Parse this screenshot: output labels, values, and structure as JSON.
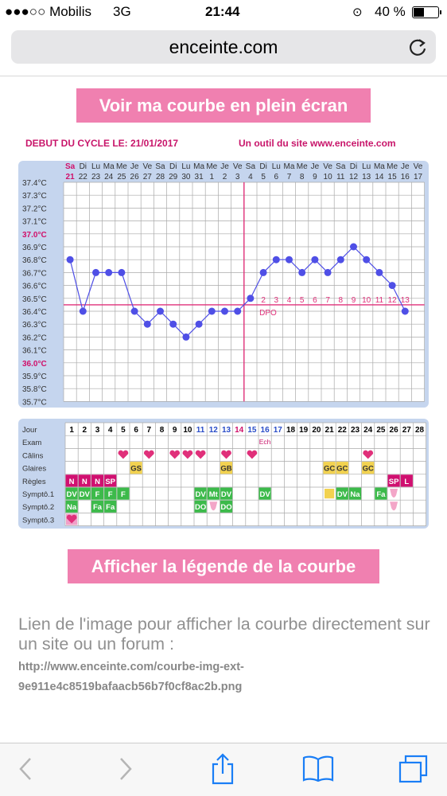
{
  "status_bar": {
    "carrier": "●●●○○ Mobilis",
    "network": "3G",
    "time": "21:44",
    "battery": "40 %"
  },
  "browser": {
    "url": "enceinte.com"
  },
  "buttons": {
    "fullscreen": "Voir ma courbe en plein écran",
    "legend": "Afficher la légende de la courbe"
  },
  "chart": {
    "header_left": "DEBUT DU CYCLE LE: 21/01/2017",
    "header_right": "Un outil du site www.enceinte.com",
    "y_labels": [
      "37.4°C",
      "37.3°C",
      "37.2°C",
      "37.1°C",
      "37.0°C",
      "36.9°C",
      "36.8°C",
      "36.7°C",
      "36.6°C",
      "36.5°C",
      "36.4°C",
      "36.3°C",
      "36.2°C",
      "36.1°C",
      "36.0°C",
      "35.9°C",
      "35.8°C",
      "35.7°C"
    ],
    "day_names": [
      "Sa",
      "Di",
      "Lu",
      "Ma",
      "Me",
      "Je",
      "Ve",
      "Sa",
      "Di",
      "Lu",
      "Ma",
      "Me",
      "Je",
      "Ve",
      "Sa",
      "Di",
      "Lu",
      "Ma",
      "Me",
      "Je",
      "Ve",
      "Sa",
      "Di",
      "Lu",
      "Ma",
      "Me",
      "Je",
      "Ve"
    ],
    "day_numbers": [
      "21",
      "22",
      "23",
      "24",
      "25",
      "26",
      "27",
      "28",
      "29",
      "30",
      "31",
      "1",
      "2",
      "3",
      "4",
      "5",
      "6",
      "7",
      "8",
      "9",
      "10",
      "11",
      "12",
      "13",
      "14",
      "15",
      "16",
      "17"
    ],
    "temps": [
      36.8,
      36.4,
      36.7,
      36.7,
      36.7,
      36.4,
      36.3,
      36.4,
      36.3,
      36.2,
      36.3,
      36.4,
      36.4,
      36.4,
      36.5,
      36.7,
      36.8,
      36.8,
      36.7,
      36.8,
      36.7,
      36.8,
      36.9,
      36.8,
      36.7,
      36.6,
      36.4
    ],
    "coverline": 36.45,
    "ovulation_day": 14,
    "dpo_labels": [
      "1",
      "2",
      "3",
      "4",
      "5",
      "6",
      "7",
      "8",
      "9",
      "10",
      "11",
      "12",
      "13"
    ],
    "dpo_text": "DPO",
    "row_labels": [
      "Jour",
      "Exam",
      "Câlins",
      "Glaires",
      "Règles",
      "Symptô.1",
      "Symptô.2",
      "Symptô.3"
    ],
    "cycle_days": [
      "1",
      "2",
      "3",
      "4",
      "5",
      "6",
      "7",
      "8",
      "9",
      "10",
      "11",
      "12",
      "13",
      "14",
      "15",
      "16",
      "17",
      "18",
      "19",
      "20",
      "21",
      "22",
      "23",
      "24",
      "25",
      "26",
      "27",
      "28"
    ],
    "exam": [
      {
        "day": 16,
        "text": "Ech"
      }
    ],
    "calins_days": [
      5,
      7,
      9,
      10,
      11,
      13,
      15,
      24
    ],
    "glaires": [
      {
        "day": 6,
        "text": "GS"
      },
      {
        "day": 13,
        "text": "GB"
      },
      {
        "day": 21,
        "text": "GC"
      },
      {
        "day": 22,
        "text": "GC"
      },
      {
        "day": 24,
        "text": "GC"
      }
    ],
    "regles": [
      {
        "day": 1,
        "text": "N"
      },
      {
        "day": 2,
        "text": "N"
      },
      {
        "day": 3,
        "text": "N"
      },
      {
        "day": 4,
        "text": "SP"
      },
      {
        "day": 26,
        "text": "SP"
      },
      {
        "day": 27,
        "text": "L"
      }
    ],
    "sympto1": [
      {
        "day": 1,
        "text": "DV"
      },
      {
        "day": 2,
        "text": "DV"
      },
      {
        "day": 3,
        "text": "F"
      },
      {
        "day": 4,
        "text": "F"
      },
      {
        "day": 5,
        "text": "F"
      },
      {
        "day": 11,
        "text": "DV"
      },
      {
        "day": 12,
        "text": "Mt"
      },
      {
        "day": 13,
        "text": "DV"
      },
      {
        "day": 16,
        "text": "DV"
      },
      {
        "day": 22,
        "text": "DV"
      },
      {
        "day": 23,
        "text": "Na"
      },
      {
        "day": 25,
        "text": "Fa"
      }
    ],
    "sympto2": [
      {
        "day": 1,
        "text": "Na"
      },
      {
        "day": 3,
        "text": "Fa"
      },
      {
        "day": 4,
        "text": "Fa"
      },
      {
        "day": 11,
        "text": "DO"
      },
      {
        "day": 13,
        "text": "DO"
      }
    ]
  },
  "text": {
    "lien": "Lien de l'image pour afficher la courbe directement sur un site ou un forum :",
    "link_line1": "http://www.enceinte.com/courbe-img-ext-",
    "link_line2": "9e911e4c8519bafaacb56b7f0cf8ac2b.png"
  },
  "colors": {
    "accent": "#f080b0",
    "grid_bg": "#c5d5ee",
    "ovulation": "#e0307a",
    "point": "#4f4fe6"
  }
}
